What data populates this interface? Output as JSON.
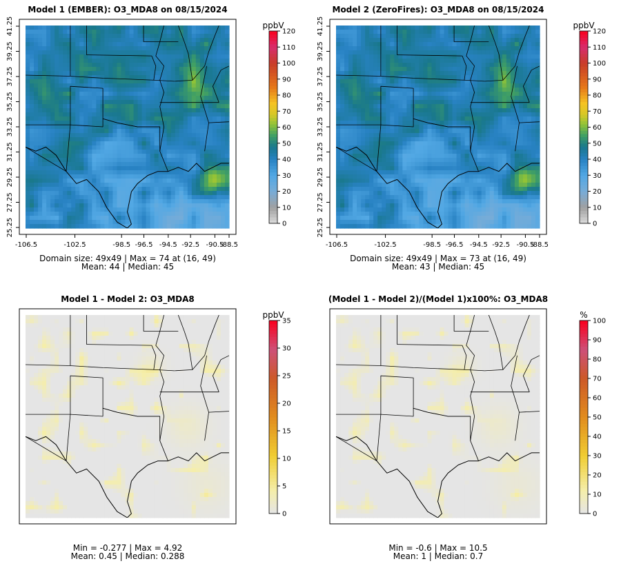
{
  "chart_data": [
    {
      "type": "heatmap",
      "title": "Model 1 (EMBER): O3_MDA8 on 08/15/2024",
      "unit": "ppbV",
      "variant": "ember",
      "colorbar": {
        "ticks": [
          "0",
          "10",
          "20",
          "30",
          "40",
          "50",
          "60",
          "70",
          "80",
          "90",
          "100",
          "110",
          "120"
        ],
        "min": 0,
        "max": 120
      },
      "x_ticks": [
        "-106.5",
        "-102.5",
        "-98.5",
        "-96.5",
        "-94.5",
        "-92.5",
        "-90.5",
        "-88.5"
      ],
      "y_ticks": [
        "25.25",
        "27.25",
        "29.25",
        "31.25",
        "33.25",
        "35.25",
        "37.25",
        "39.25",
        "41.25"
      ],
      "stats_line1": "Domain size: 49x49 | Max = 74 at (16, 49)",
      "stats_line2": "Mean: 44 |  Median: 45",
      "domain_size": "49x49",
      "max": 74,
      "max_loc": "(16, 49)",
      "mean": 44,
      "median": 45
    },
    {
      "type": "heatmap",
      "title": "Model 2 (ZeroFires): O3_MDA8 on 08/15/2024",
      "unit": "ppbV",
      "variant": "zerofires",
      "colorbar": {
        "ticks": [
          "0",
          "10",
          "20",
          "30",
          "40",
          "50",
          "60",
          "70",
          "80",
          "90",
          "100",
          "110",
          "120"
        ],
        "min": 0,
        "max": 120
      },
      "x_ticks": [
        "-106.5",
        "-102.5",
        "-98.5",
        "-96.5",
        "-94.5",
        "-92.5",
        "-90.5",
        "-88.5"
      ],
      "y_ticks": [
        "25.25",
        "27.25",
        "29.25",
        "31.25",
        "33.25",
        "35.25",
        "37.25",
        "39.25",
        "41.25"
      ],
      "stats_line1": "Domain size: 49x49 | Max = 73 at (16, 49)",
      "stats_line2": "Mean: 43 |  Median: 45",
      "domain_size": "49x49",
      "max": 73,
      "max_loc": "(16, 49)",
      "mean": 43,
      "median": 45
    },
    {
      "type": "heatmap",
      "title": "Model 1 - Model 2: O3_MDA8",
      "unit": "ppbV",
      "variant": "diff",
      "colorbar": {
        "ticks": [
          "0",
          "5",
          "10",
          "15",
          "20",
          "25",
          "30",
          "35"
        ],
        "min": 0,
        "max": 35
      },
      "stats_line1": "Min = -0.277 | Max = 4.92",
      "stats_line2": "Mean: 0.45 |  Median: 0.288",
      "min": -0.277,
      "max": 4.92,
      "mean": 0.45,
      "median": 0.288
    },
    {
      "type": "heatmap",
      "title": "(Model 1 - Model 2)/(Model 1)x100%: O3_MDA8",
      "unit": "%",
      "variant": "pct",
      "colorbar": {
        "ticks": [
          "0",
          "10",
          "20",
          "30",
          "40",
          "50",
          "60",
          "70",
          "80",
          "90",
          "100"
        ],
        "min": 0,
        "max": 100
      },
      "stats_line1": "Min = -0.6 | Max = 10.5",
      "stats_line2": "Mean: 1 |  Median: 0.7",
      "min": -0.6,
      "max": 10.5,
      "mean": 1,
      "median": 0.7
    }
  ]
}
